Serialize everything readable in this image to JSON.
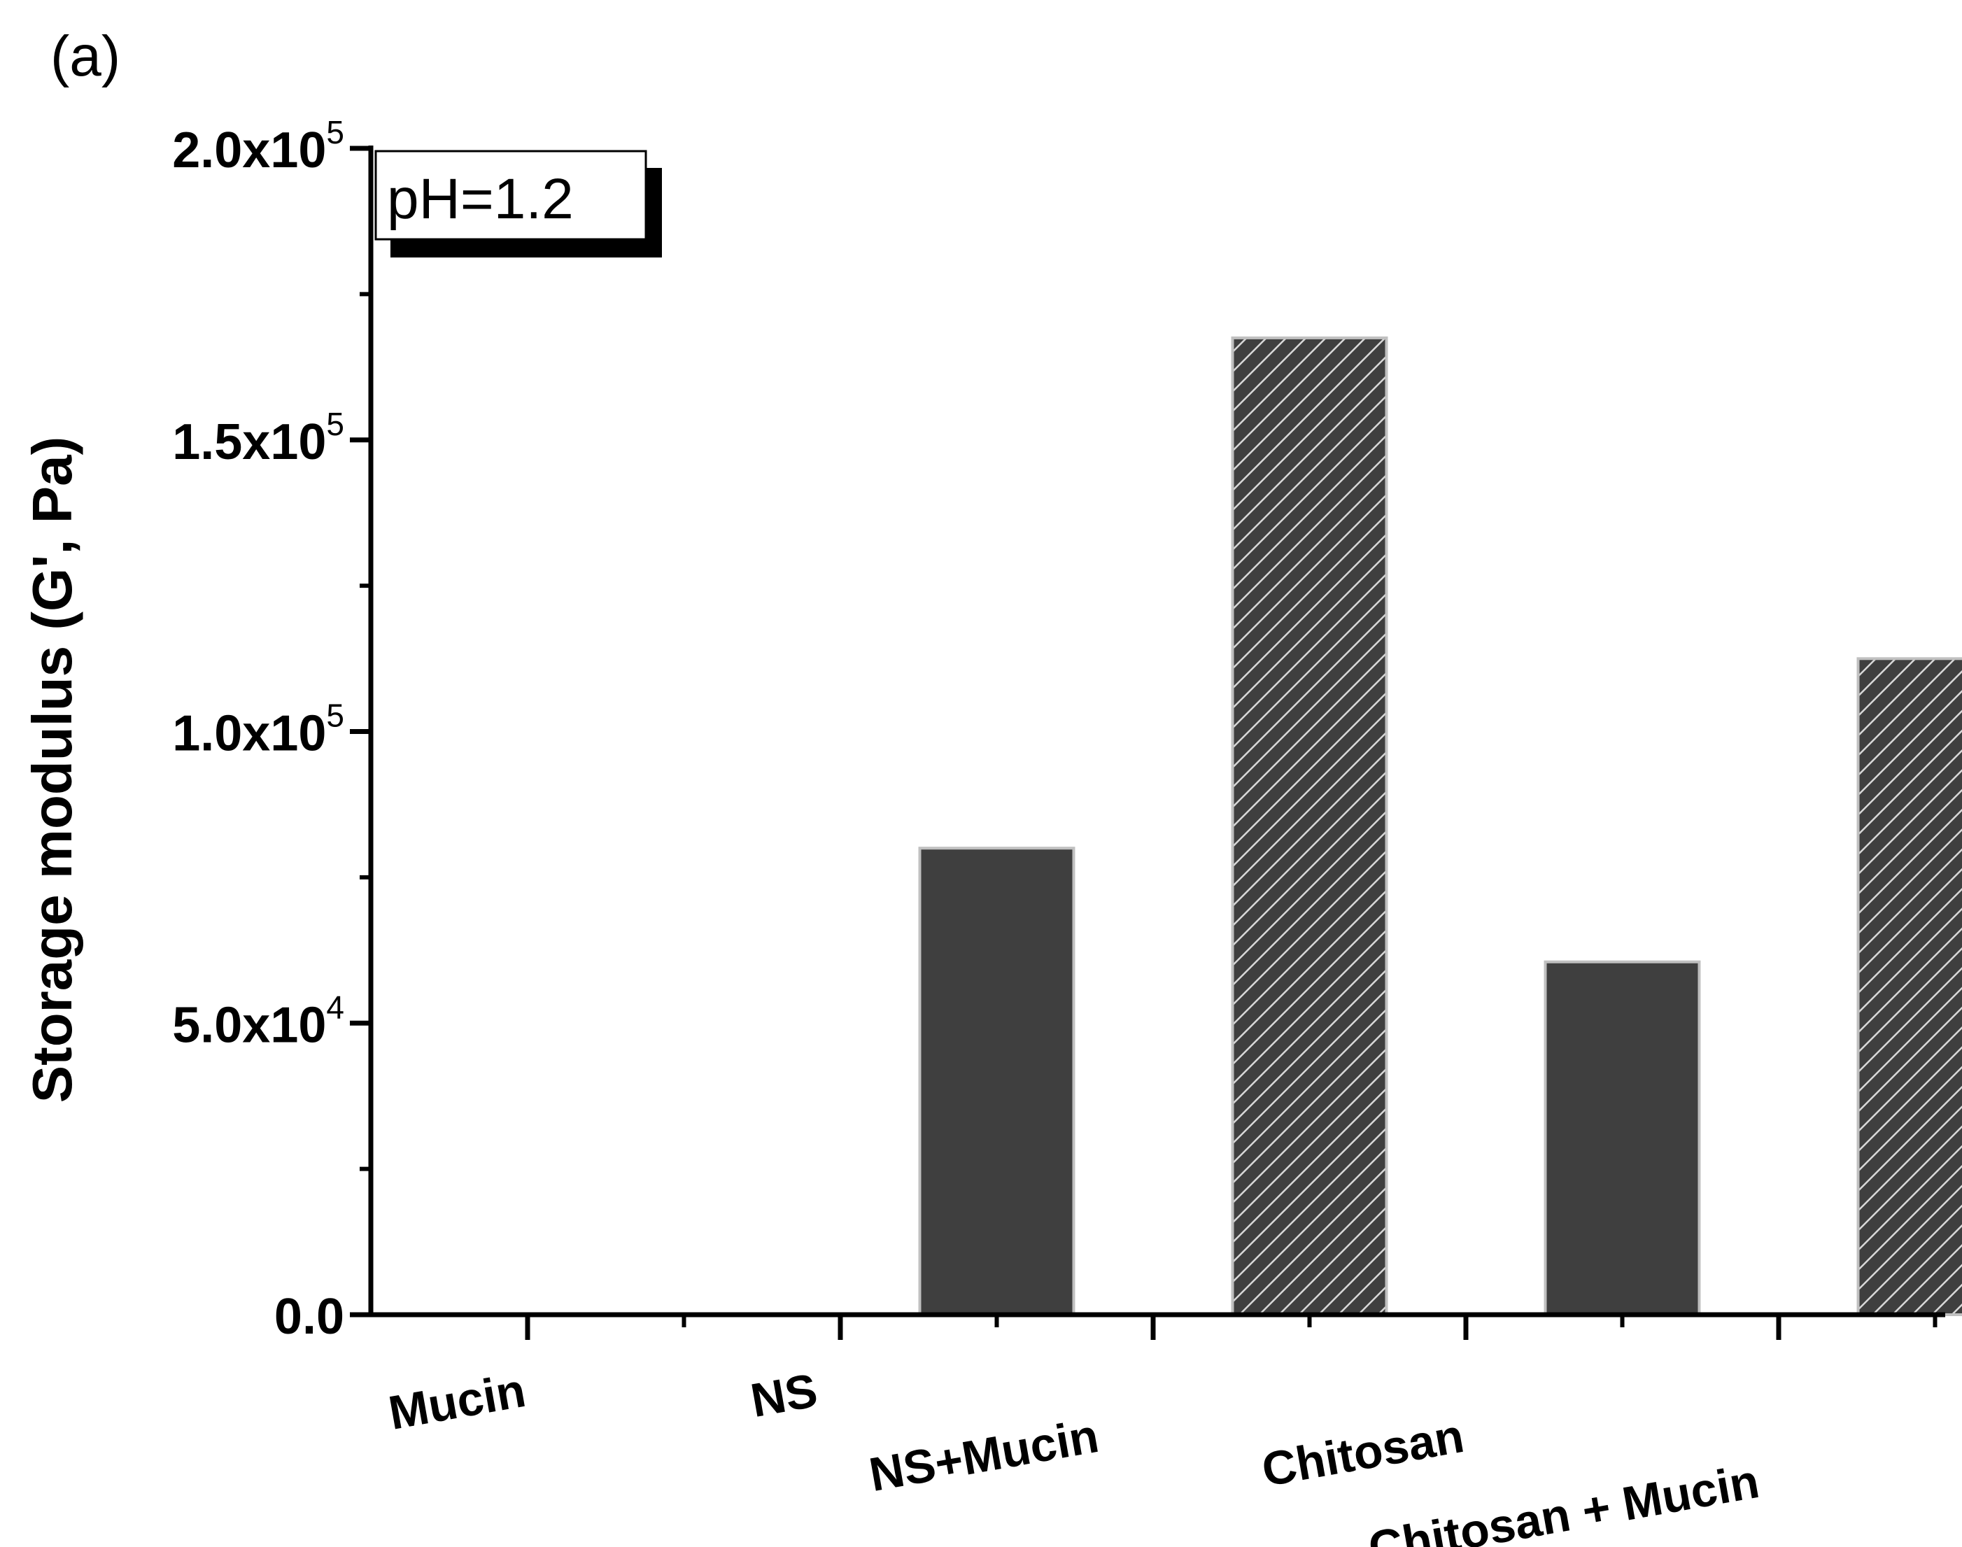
{
  "panel_label": "(a)",
  "chart_data": {
    "type": "bar",
    "ylabel": "Storage modulus (G', Pa)",
    "annotation": "pH=1.2",
    "ylim": [
      0,
      200000
    ],
    "yticks": [
      {
        "value": 0,
        "mantissa": "0.0",
        "exp": ""
      },
      {
        "value": 50000,
        "mantissa": "5.0x10",
        "exp": "4"
      },
      {
        "value": 100000,
        "mantissa": "1.0x10",
        "exp": "5"
      },
      {
        "value": 150000,
        "mantissa": "1.5x10",
        "exp": "5"
      },
      {
        "value": 200000,
        "mantissa": "2.0x10",
        "exp": "5"
      }
    ],
    "categories": [
      "Mucin",
      "NS",
      "NS+Mucin",
      "Chitosan",
      "Chitosan + Mucin"
    ],
    "values": [
      0,
      80000,
      167500,
      60500,
      112500
    ],
    "fills": [
      "solid",
      "solid",
      "hatched",
      "solid",
      "hatched"
    ],
    "bar_color": "#3f3f3f",
    "bar_edge_color": "#c0c0c0",
    "hatch_color": "#d8d8d8"
  }
}
